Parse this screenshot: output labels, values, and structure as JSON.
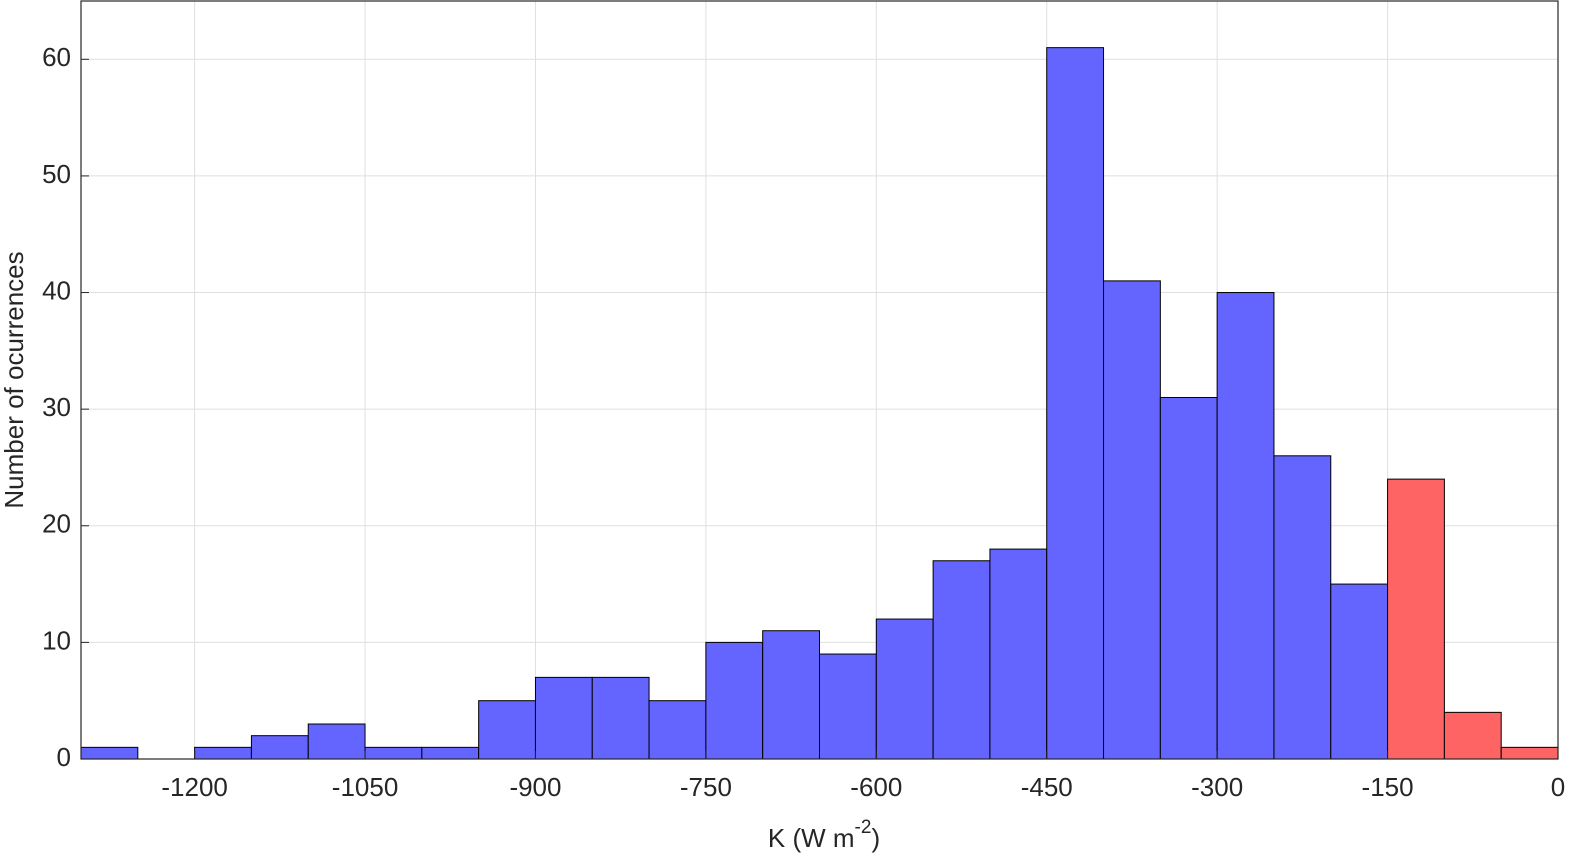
{
  "chart_data": {
    "type": "histogram",
    "xlabel": [
      "K (W m",
      "-2",
      ")"
    ],
    "ylabel": "Number of ocurrences",
    "series": [
      {
        "color": "#6464ff",
        "bins": [
          -1300,
          -1250,
          -1200,
          -1150,
          -1100,
          -1050,
          -1000,
          -950,
          -900,
          -850,
          -800,
          -750,
          -700,
          -650,
          -600,
          -550,
          -500,
          -450,
          -400,
          -350,
          -300,
          -250,
          -200,
          -150
        ],
        "values": [
          1,
          0,
          1,
          2,
          3,
          1,
          1,
          5,
          7,
          7,
          5,
          10,
          11,
          9,
          12,
          17,
          18,
          61,
          41,
          31,
          40,
          26,
          15
        ]
      },
      {
        "color": "#ff6464",
        "bins": [
          -150,
          -100,
          -50,
          0
        ],
        "values": [
          24,
          4,
          1
        ]
      }
    ],
    "xlim": [
      -1300,
      0
    ],
    "xticks": [
      -1200,
      -1050,
      -900,
      -750,
      -600,
      -450,
      -300,
      -150,
      0
    ],
    "ylim": [
      0,
      65
    ],
    "yticks": [
      0,
      10,
      20,
      30,
      40,
      50,
      60
    ],
    "grid": true
  }
}
